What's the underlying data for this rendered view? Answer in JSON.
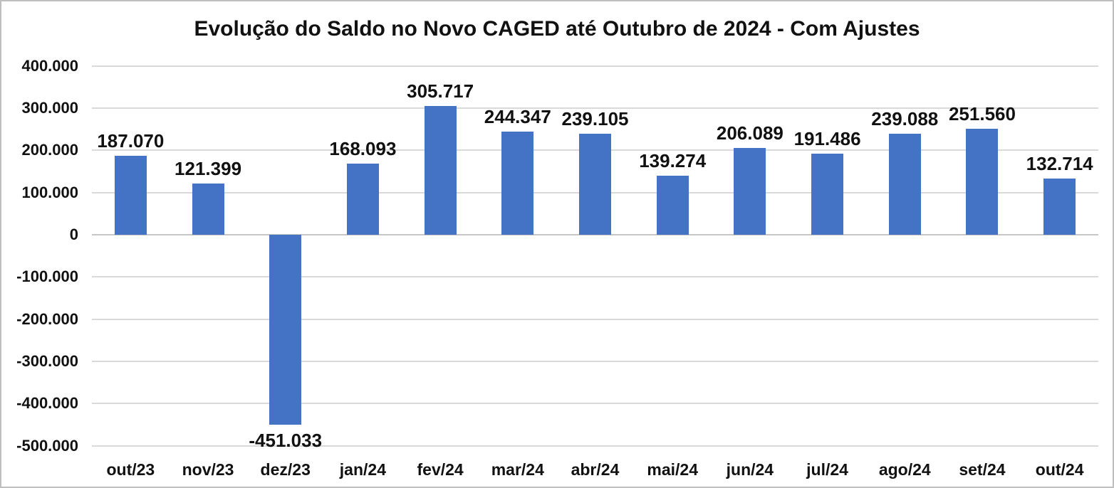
{
  "chart_data": {
    "type": "bar",
    "title": "Evolução do Saldo no Novo CAGED até Outubro de 2024 - Com Ajustes",
    "categories": [
      "out/23",
      "nov/23",
      "dez/23",
      "jan/24",
      "fev/24",
      "mar/24",
      "abr/24",
      "mai/24",
      "jun/24",
      "jul/24",
      "ago/24",
      "set/24",
      "out/24"
    ],
    "values": [
      187070,
      121399,
      -451033,
      168093,
      305717,
      244347,
      239105,
      139274,
      206089,
      191486,
      239088,
      251560,
      132714
    ],
    "value_labels": [
      "187.070",
      "121.399",
      "-451.033",
      "168.093",
      "305.717",
      "244.347",
      "239.105",
      "139.274",
      "206.089",
      "191.486",
      "239.088",
      "251.560",
      "132.714"
    ],
    "xlabel": "",
    "ylabel": "",
    "y_axis": {
      "min": -500000,
      "max": 400000,
      "step": 100000,
      "tick_labels": [
        "400.000",
        "300.000",
        "200.000",
        "100.000",
        "0",
        "-100.000",
        "-200.000",
        "-300.000",
        "-400.000",
        "-500.000"
      ]
    },
    "grid": true,
    "legend_position": "none",
    "colors": {
      "bar": "#4472c4",
      "gridline": "#d9d9d9",
      "zero_line": "#c6c6c6",
      "text": "#111111",
      "background": "#ffffff",
      "border": "#bfbfbf"
    }
  }
}
